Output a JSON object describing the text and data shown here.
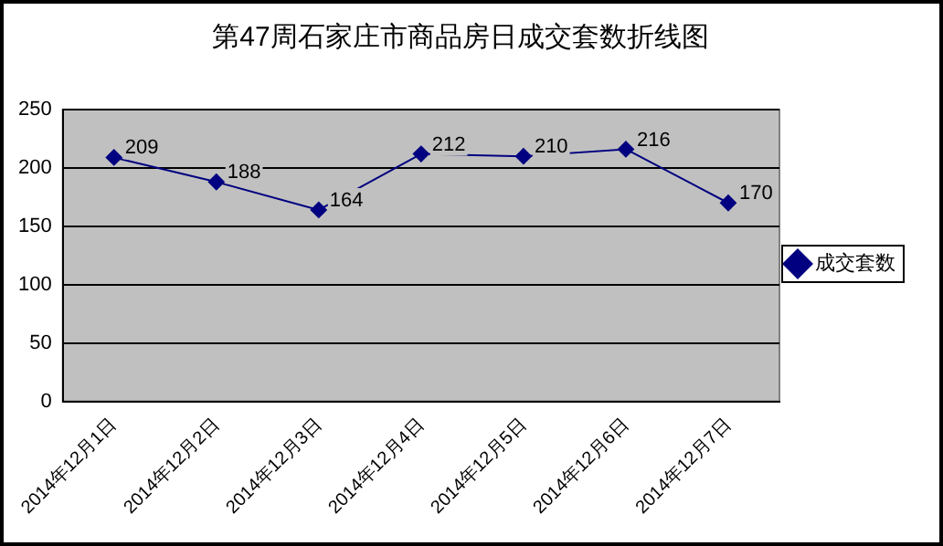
{
  "chart_data": {
    "type": "line",
    "title": "第47周石家庄市商品房日成交套数折线图",
    "categories": [
      "2014年12月1日",
      "2014年12月2日",
      "2014年12月3日",
      "2014年12月4日",
      "2014年12月5日",
      "2014年12月6日",
      "2014年12月7日"
    ],
    "series": [
      {
        "name": "成交套数",
        "color": "#000080",
        "values": [
          209,
          188,
          164,
          212,
          210,
          216,
          170
        ]
      }
    ],
    "ylim": [
      0,
      250
    ],
    "yticks": [
      0,
      50,
      100,
      150,
      200,
      250
    ],
    "grid": "y",
    "legend": "right",
    "marker": "diamond",
    "line_style": "solid",
    "data_labels": true
  }
}
